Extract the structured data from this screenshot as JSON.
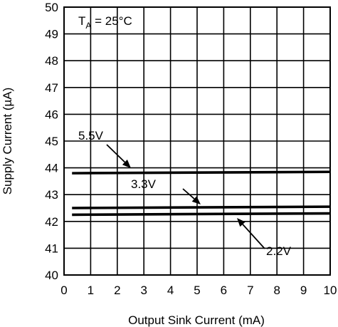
{
  "chart_data": {
    "type": "line",
    "xlabel": "Output Sink Current (mA)",
    "ylabel": "Supply Current (µA)",
    "xlim": [
      0,
      10
    ],
    "ylim": [
      40,
      50
    ],
    "xticks": [
      "0",
      "1",
      "2",
      "3",
      "4",
      "5",
      "6",
      "7",
      "8",
      "9",
      "10"
    ],
    "yticks": [
      "40",
      "41",
      "42",
      "43",
      "44",
      "45",
      "46",
      "47",
      "48",
      "49",
      "50"
    ],
    "grid": true,
    "condition": {
      "main": "T",
      "sub": "A",
      "rest": " = 25°C"
    },
    "series": [
      {
        "name": "5.5V",
        "x": [
          0.3,
          10
        ],
        "y": [
          43.8,
          43.85
        ]
      },
      {
        "name": "3.3V",
        "x": [
          0.3,
          10
        ],
        "y": [
          42.5,
          42.55
        ]
      },
      {
        "name": "2.2V",
        "x": [
          0.3,
          10
        ],
        "y": [
          42.25,
          42.3
        ]
      }
    ]
  }
}
